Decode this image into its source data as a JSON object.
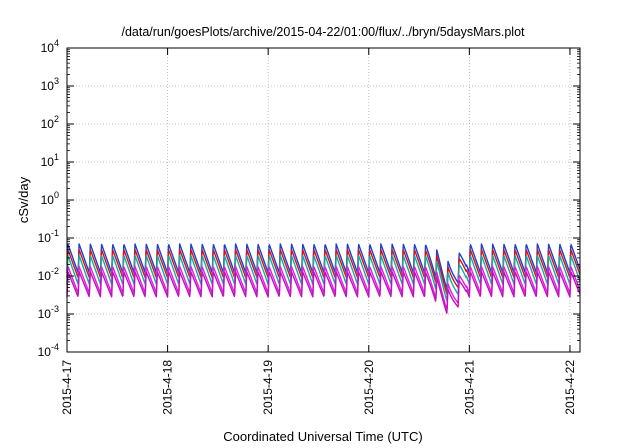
{
  "chart_data": {
    "type": "line",
    "title": "/data/run/goesPlots/archive/2015-04-22/01:00/flux/../bryn/5daysMars.plot",
    "xlabel": "Coordinated Universal Time (UTC)",
    "ylabel": "cSv/day",
    "yscale": "log",
    "ylim_exp": [
      -4,
      4
    ],
    "ytick_base": "10",
    "yticks_exp": [
      "-4",
      "-3",
      "-2",
      "-1",
      "0",
      "1",
      "2",
      "3",
      "4"
    ],
    "xlim_days": [
      0,
      5.1
    ],
    "xticks": [
      {
        "label": "2015-4-17",
        "day": 0
      },
      {
        "label": "2015-4-18",
        "day": 1
      },
      {
        "label": "2015-4-19",
        "day": 2
      },
      {
        "label": "2015-4-20",
        "day": 3
      },
      {
        "label": "2015-4-21",
        "day": 4
      },
      {
        "label": "2015-4-22",
        "day": 5
      }
    ],
    "grid": true,
    "legend": "none",
    "cycles_per_day": 9,
    "disturbance_day": 3.85,
    "series": [
      {
        "color": "#1f3fd0",
        "peak": 0.07,
        "trough": 0.012
      },
      {
        "color": "#d01818",
        "peak": 0.05,
        "trough": 0.009
      },
      {
        "color": "#18a8a8",
        "peak": 0.035,
        "trough": 0.006
      },
      {
        "color": "#e020e0",
        "peak": 0.018,
        "trough": 0.0035
      },
      {
        "color": "#c010c0",
        "peak": 0.013,
        "trough": 0.0028
      }
    ]
  }
}
